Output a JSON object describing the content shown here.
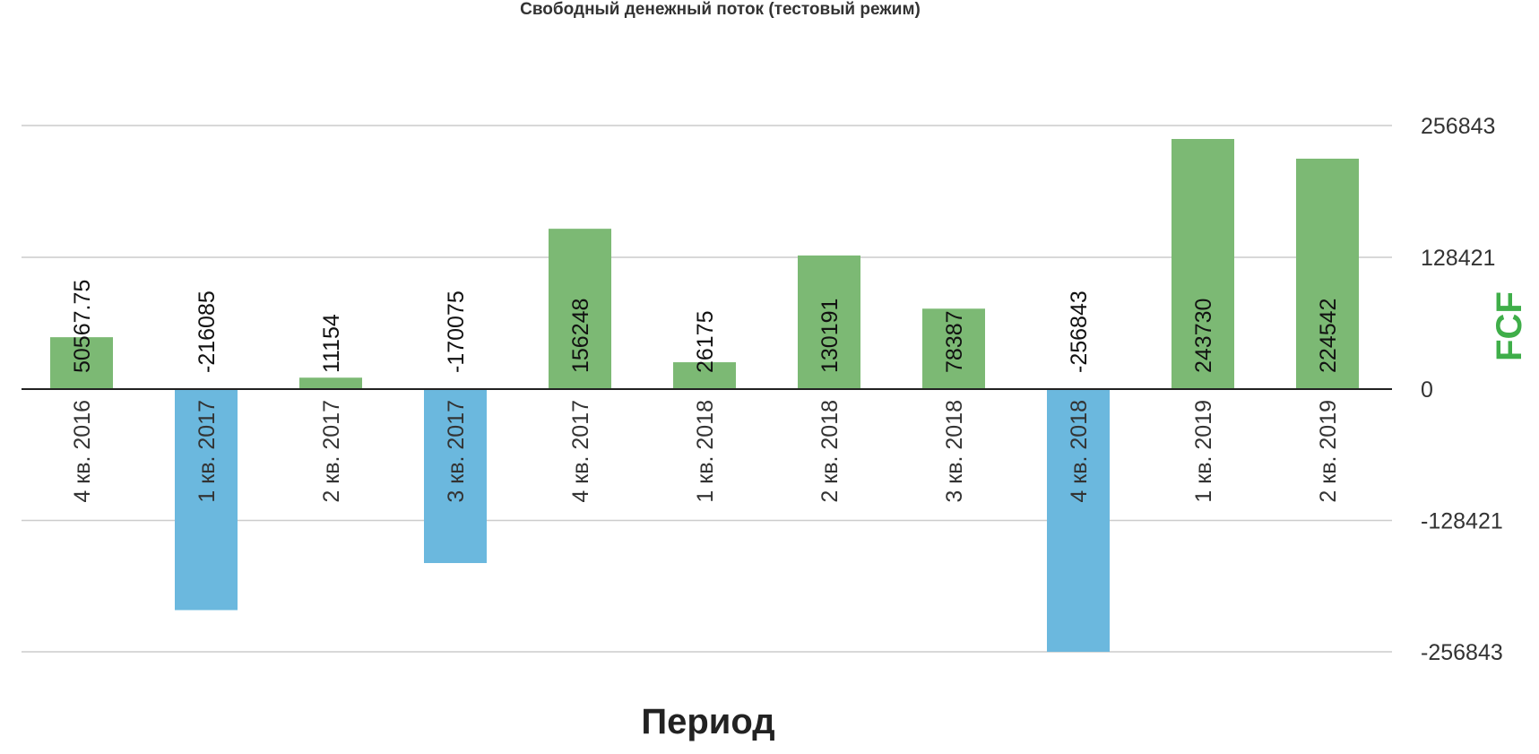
{
  "chart_data": {
    "type": "bar",
    "title": "Свободный денежный поток (тестовый режим)",
    "xlabel": "Период",
    "ylabel": "FCF",
    "categories": [
      "4 кв. 2016",
      "1 кв. 2017",
      "2 кв. 2017",
      "3 кв. 2017",
      "4 кв. 2017",
      "1 кв. 2018",
      "2 кв. 2018",
      "3 кв. 2018",
      "4 кв. 2018",
      "1 кв. 2019",
      "2 кв. 2019"
    ],
    "values": [
      50567.75,
      -216085,
      11154,
      -170075,
      156248,
      26175,
      130191,
      78387,
      -256843,
      243730,
      224542
    ],
    "value_labels": [
      "50567.75",
      "-216085",
      "11154",
      "-170075",
      "156248",
      "26175",
      "130191",
      "78387",
      "-256843",
      "243730",
      "224542"
    ],
    "yticks": [
      256843,
      128421,
      0,
      -128421,
      -256843
    ],
    "ylim": [
      -256843,
      256843
    ],
    "grid": true,
    "y_axis_side": "right",
    "colors": {
      "positive": "#7cb974",
      "negative": "#6bb8de",
      "ylabel": "#3fae49"
    }
  }
}
